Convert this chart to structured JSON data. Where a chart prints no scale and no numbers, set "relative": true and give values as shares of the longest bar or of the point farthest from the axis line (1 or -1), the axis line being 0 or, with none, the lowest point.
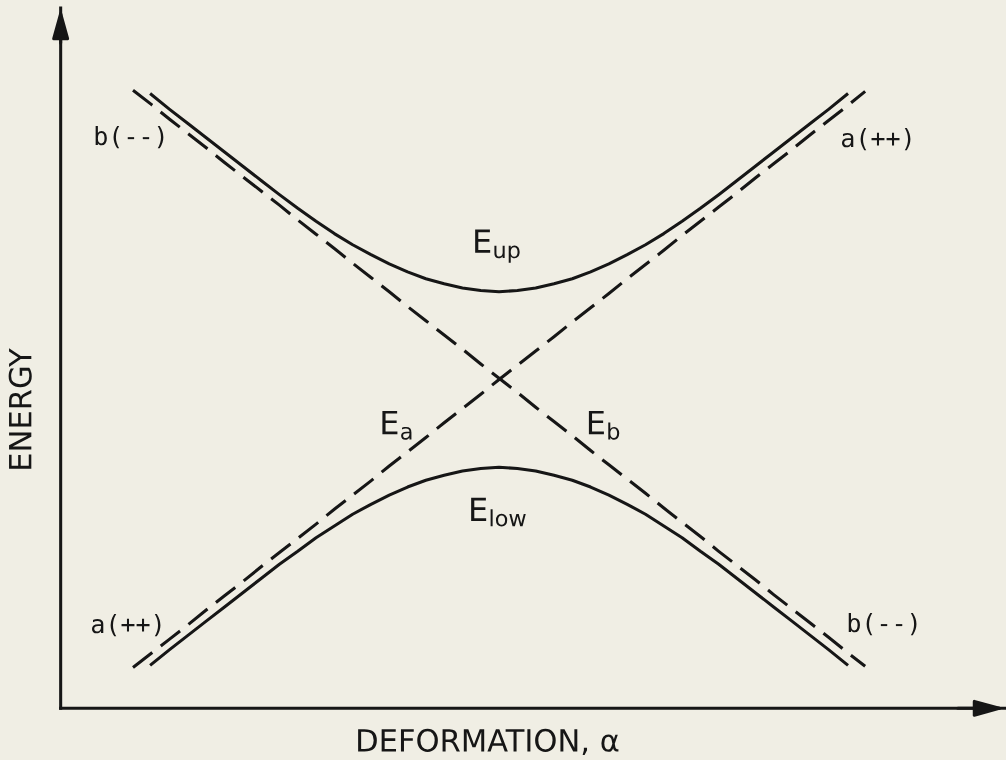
{
  "chart_data": {
    "type": "line",
    "relative": true,
    "xlabel": "DEFORMATION, α",
    "ylabel": "ENERGY",
    "annotations": [
      "b(--)",
      "a(++)",
      "a(++)",
      "b(--)"
    ],
    "categories": [
      null,
      null,
      null,
      null,
      null,
      null,
      null,
      null,
      null,
      null,
      null,
      null,
      null,
      null,
      null,
      null,
      null,
      null,
      null,
      null,
      null,
      null,
      null,
      null,
      null,
      null,
      null,
      null,
      null,
      null,
      null,
      null,
      null,
      null,
      null,
      null,
      null,
      null,
      null,
      null,
      null
    ],
    "series": [
      {
        "name": "E$_{up}$",
        "color": "#161616",
        "line_style": "solid",
        "values": [
          null,
          0.993,
          0.969,
          0.946,
          0.923,
          0.9,
          0.877,
          0.854,
          0.831,
          0.809,
          0.788,
          0.768,
          0.75,
          0.734,
          0.719,
          0.706,
          0.695,
          0.687,
          0.68,
          0.676,
          0.674,
          0.676,
          0.68,
          0.687,
          0.695,
          0.706,
          0.719,
          0.734,
          0.75,
          0.768,
          0.788,
          0.809,
          0.831,
          0.854,
          0.877,
          0.9,
          0.923,
          0.946,
          0.969,
          0.993,
          null
        ]
      },
      {
        "name": "E$_{a}$",
        "color": "#161616",
        "line_style": "dashed",
        "values": [
          0.066,
          0.089,
          0.112,
          0.135,
          0.159,
          0.182,
          0.205,
          0.229,
          0.252,
          0.275,
          0.298,
          0.322,
          0.345,
          0.368,
          0.392,
          0.415,
          0.438,
          0.462,
          0.485,
          0.508,
          0.532,
          0.555,
          0.578,
          0.601,
          0.625,
          0.648,
          0.671,
          0.695,
          0.718,
          0.741,
          0.765,
          0.788,
          0.811,
          0.834,
          0.858,
          0.881,
          0.904,
          0.928,
          0.951,
          0.974,
          0.998
        ]
      },
      {
        "name": "E$_{b}$",
        "color": "#161616",
        "line_style": "dashed",
        "values": [
          1.0,
          0.977,
          0.953,
          0.93,
          0.907,
          0.883,
          0.86,
          0.837,
          0.814,
          0.79,
          0.767,
          0.744,
          0.72,
          0.697,
          0.674,
          0.65,
          0.627,
          0.604,
          0.581,
          0.557,
          0.534,
          0.511,
          0.487,
          0.464,
          0.441,
          0.417,
          0.394,
          0.371,
          0.348,
          0.324,
          0.301,
          0.278,
          0.254,
          0.231,
          0.208,
          0.184,
          0.161,
          0.138,
          0.115,
          0.091,
          0.068
        ]
      },
      {
        "name": "E$_{low}$",
        "color": "#161616",
        "line_style": "solid",
        "values": [
          null,
          0.071,
          0.095,
          0.118,
          0.141,
          0.164,
          0.187,
          0.21,
          0.233,
          0.254,
          0.276,
          0.295,
          0.314,
          0.33,
          0.345,
          0.358,
          0.369,
          0.377,
          0.384,
          0.388,
          0.39,
          0.388,
          0.384,
          0.377,
          0.369,
          0.358,
          0.345,
          0.33,
          0.314,
          0.295,
          0.276,
          0.254,
          0.233,
          0.21,
          0.187,
          0.164,
          0.141,
          0.118,
          0.095,
          0.071,
          null
        ]
      }
    ]
  }
}
